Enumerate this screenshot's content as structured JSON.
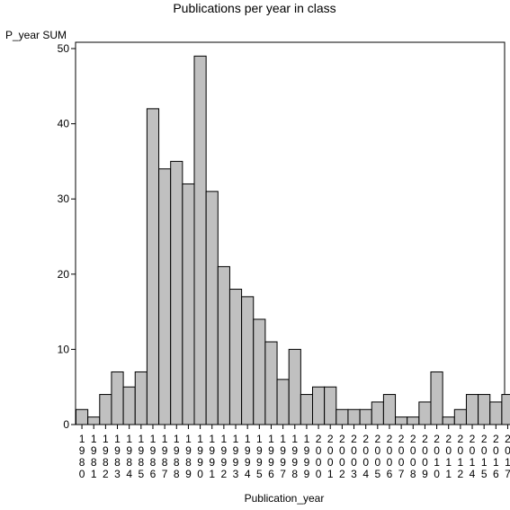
{
  "chart_data": {
    "type": "bar",
    "title": "Publications per year in class",
    "ylabel": "P_year SUM",
    "xlabel": "Publication_year",
    "ylim": [
      0,
      50
    ],
    "yticks": [
      0,
      10,
      20,
      30,
      40,
      50
    ],
    "grid": false,
    "bar_color": "#c0c0c0",
    "categories": [
      "1980",
      "1981",
      "1982",
      "1983",
      "1984",
      "1985",
      "1986",
      "1987",
      "1988",
      "1989",
      "1990",
      "1991",
      "1992",
      "1993",
      "1994",
      "1995",
      "1996",
      "1997",
      "1998",
      "1999",
      "2000",
      "2001",
      "2002",
      "2003",
      "2004",
      "2005",
      "2006",
      "2007",
      "2008",
      "2009",
      "2010",
      "2011",
      "2012",
      "2014",
      "2015",
      "2016",
      "2017"
    ],
    "values": [
      2,
      1,
      4,
      7,
      5,
      7,
      42,
      34,
      35,
      32,
      49,
      31,
      21,
      18,
      17,
      14,
      11,
      6,
      10,
      4,
      5,
      5,
      2,
      2,
      2,
      3,
      4,
      1,
      1,
      3,
      7,
      1,
      2,
      4,
      4,
      3,
      4
    ]
  }
}
